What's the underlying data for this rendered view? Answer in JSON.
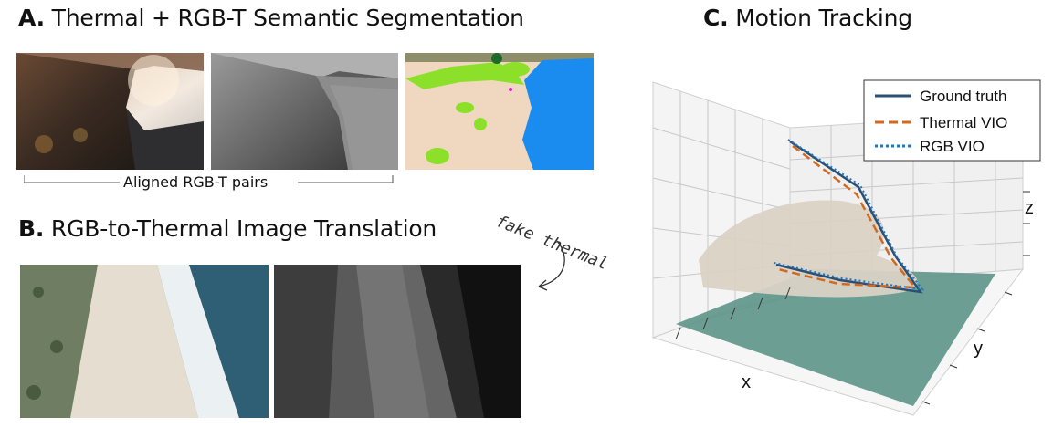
{
  "panel_a": {
    "letter": "A.",
    "title": "Thermal + RGB-T Semantic Segmentation",
    "caption": "Aligned RGB-T pairs"
  },
  "panel_b": {
    "letter": "B.",
    "title": "RGB-to-Thermal Image Translation",
    "annotation": "fake thermal"
  },
  "panel_c": {
    "letter": "C.",
    "title": "Motion Tracking",
    "legend": [
      {
        "label": "Ground truth",
        "color": "#2b4f75",
        "style": "solid"
      },
      {
        "label": "Thermal VIO",
        "color": "#d2691e",
        "style": "dashed"
      },
      {
        "label": "RGB VIO",
        "color": "#1f77c4",
        "style": "dotted"
      }
    ],
    "axis_labels": {
      "x": "x",
      "y": "y",
      "z": "z"
    }
  },
  "colors": {
    "seg_ground": "#f0d8c0",
    "seg_water": "#1a8cf0",
    "seg_vegetation": "#8ce02a",
    "terrain_water": "#5d958a"
  }
}
